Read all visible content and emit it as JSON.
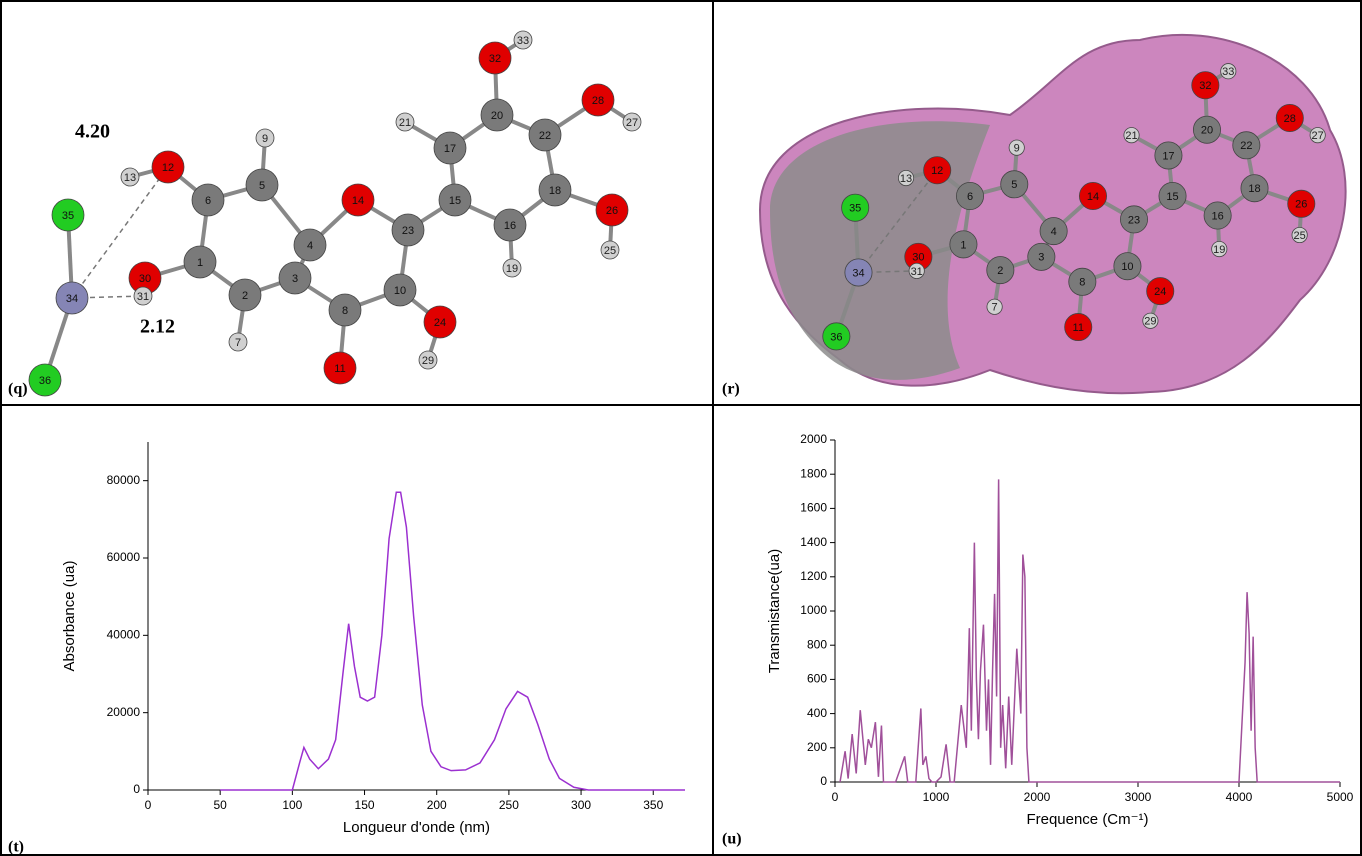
{
  "panel_labels": [
    "(q)",
    "(r)",
    "(t)",
    "(u)"
  ],
  "annotations": [
    "4.20",
    "2.12"
  ],
  "molecule": {
    "atoms": [
      {
        "label": "1",
        "color": "#7a7a7a"
      },
      {
        "label": "2",
        "color": "#7a7a7a"
      },
      {
        "label": "3",
        "color": "#7a7a7a"
      },
      {
        "label": "4",
        "color": "#7a7a7a"
      },
      {
        "label": "5",
        "color": "#7a7a7a"
      },
      {
        "label": "6",
        "color": "#7a7a7a"
      },
      {
        "label": "7",
        "color": "#d0d0d0"
      },
      {
        "label": "8",
        "color": "#7a7a7a"
      },
      {
        "label": "9",
        "color": "#d0d0d0"
      },
      {
        "label": "10",
        "color": "#7a7a7a"
      },
      {
        "label": "11",
        "color": "#e00000"
      },
      {
        "label": "12",
        "color": "#e00000"
      },
      {
        "label": "13",
        "color": "#d0d0d0"
      },
      {
        "label": "14",
        "color": "#e00000"
      },
      {
        "label": "15",
        "color": "#7a7a7a"
      },
      {
        "label": "16",
        "color": "#7a7a7a"
      },
      {
        "label": "17",
        "color": "#7a7a7a"
      },
      {
        "label": "18",
        "color": "#7a7a7a"
      },
      {
        "label": "19",
        "color": "#d0d0d0"
      },
      {
        "label": "20",
        "color": "#7a7a7a"
      },
      {
        "label": "21",
        "color": "#d0d0d0"
      },
      {
        "label": "22",
        "color": "#7a7a7a"
      },
      {
        "label": "23",
        "color": "#7a7a7a"
      },
      {
        "label": "24",
        "color": "#e00000"
      },
      {
        "label": "25",
        "color": "#d0d0d0"
      },
      {
        "label": "26",
        "color": "#e00000"
      },
      {
        "label": "27",
        "color": "#d0d0d0"
      },
      {
        "label": "28",
        "color": "#e00000"
      },
      {
        "label": "29",
        "color": "#d0d0d0"
      },
      {
        "label": "30",
        "color": "#e00000"
      },
      {
        "label": "31",
        "color": "#d0d0d0"
      },
      {
        "label": "32",
        "color": "#e00000"
      },
      {
        "label": "33",
        "color": "#d0d0d0"
      },
      {
        "label": "34",
        "color": "#8585b5"
      },
      {
        "label": "35",
        "color": "#22cc22"
      },
      {
        "label": "36",
        "color": "#22cc22"
      }
    ]
  },
  "chart_data": [
    {
      "type": "line",
      "x_label": "Longueur d'onde (nm)",
      "y_label": "Absorbance (ua)",
      "color": "#9b30d0",
      "x": [
        50,
        100,
        105,
        108,
        112,
        118,
        125,
        130,
        135,
        139,
        143,
        147,
        152,
        157,
        162,
        167,
        172,
        175,
        179,
        184,
        190,
        196,
        203,
        210,
        220,
        230,
        240,
        248,
        256,
        263,
        270,
        278,
        285,
        295,
        305,
        372
      ],
      "values": [
        0,
        0,
        7000,
        11000,
        8000,
        5500,
        8000,
        13000,
        30000,
        43000,
        32000,
        24000,
        23000,
        24000,
        40000,
        65000,
        77000,
        77000,
        68000,
        45000,
        22000,
        10000,
        6000,
        5000,
        5200,
        7000,
        13000,
        21000,
        25500,
        24000,
        17000,
        8000,
        3000,
        700,
        0,
        0
      ],
      "xlim": [
        0,
        372
      ],
      "ylim": [
        0,
        90000
      ],
      "xticks": [
        0,
        50,
        100,
        150,
        200,
        250,
        300,
        350
      ],
      "yticks": [
        0,
        20000,
        40000,
        60000,
        80000
      ]
    },
    {
      "type": "line",
      "x_label": "Frequence (Cm⁻¹)",
      "y_label": "Transmistance(ua)",
      "color": "#a0509a",
      "x": [
        50,
        100,
        130,
        170,
        210,
        250,
        300,
        330,
        360,
        400,
        430,
        460,
        480,
        520,
        600,
        690,
        720,
        800,
        850,
        870,
        900,
        930,
        960,
        1000,
        1050,
        1100,
        1140,
        1180,
        1250,
        1300,
        1330,
        1350,
        1380,
        1400,
        1420,
        1440,
        1470,
        1500,
        1520,
        1540,
        1560,
        1580,
        1600,
        1620,
        1640,
        1660,
        1690,
        1720,
        1750,
        1800,
        1840,
        1860,
        1880,
        1900,
        1920,
        1960,
        2100,
        3900,
        4000,
        4060,
        4080,
        4100,
        4120,
        4140,
        4160,
        4180,
        4200,
        4250,
        5000
      ],
      "values": [
        0,
        180,
        20,
        280,
        50,
        420,
        100,
        250,
        200,
        350,
        30,
        330,
        0,
        0,
        0,
        150,
        0,
        0,
        430,
        100,
        150,
        20,
        0,
        0,
        30,
        220,
        0,
        0,
        450,
        200,
        900,
        300,
        1400,
        600,
        250,
        650,
        920,
        300,
        600,
        100,
        650,
        1100,
        500,
        1770,
        200,
        450,
        80,
        500,
        100,
        780,
        400,
        1330,
        1200,
        200,
        0,
        0,
        0,
        0,
        0,
        700,
        1110,
        870,
        300,
        850,
        200,
        0,
        0,
        0,
        0
      ],
      "xlim": [
        0,
        5000
      ],
      "ylim": [
        0,
        2000
      ],
      "xticks": [
        0,
        1000,
        2000,
        3000,
        4000,
        5000
      ],
      "yticks": [
        0,
        200,
        400,
        600,
        800,
        1000,
        1200,
        1400,
        1600,
        1800,
        2000
      ]
    }
  ]
}
